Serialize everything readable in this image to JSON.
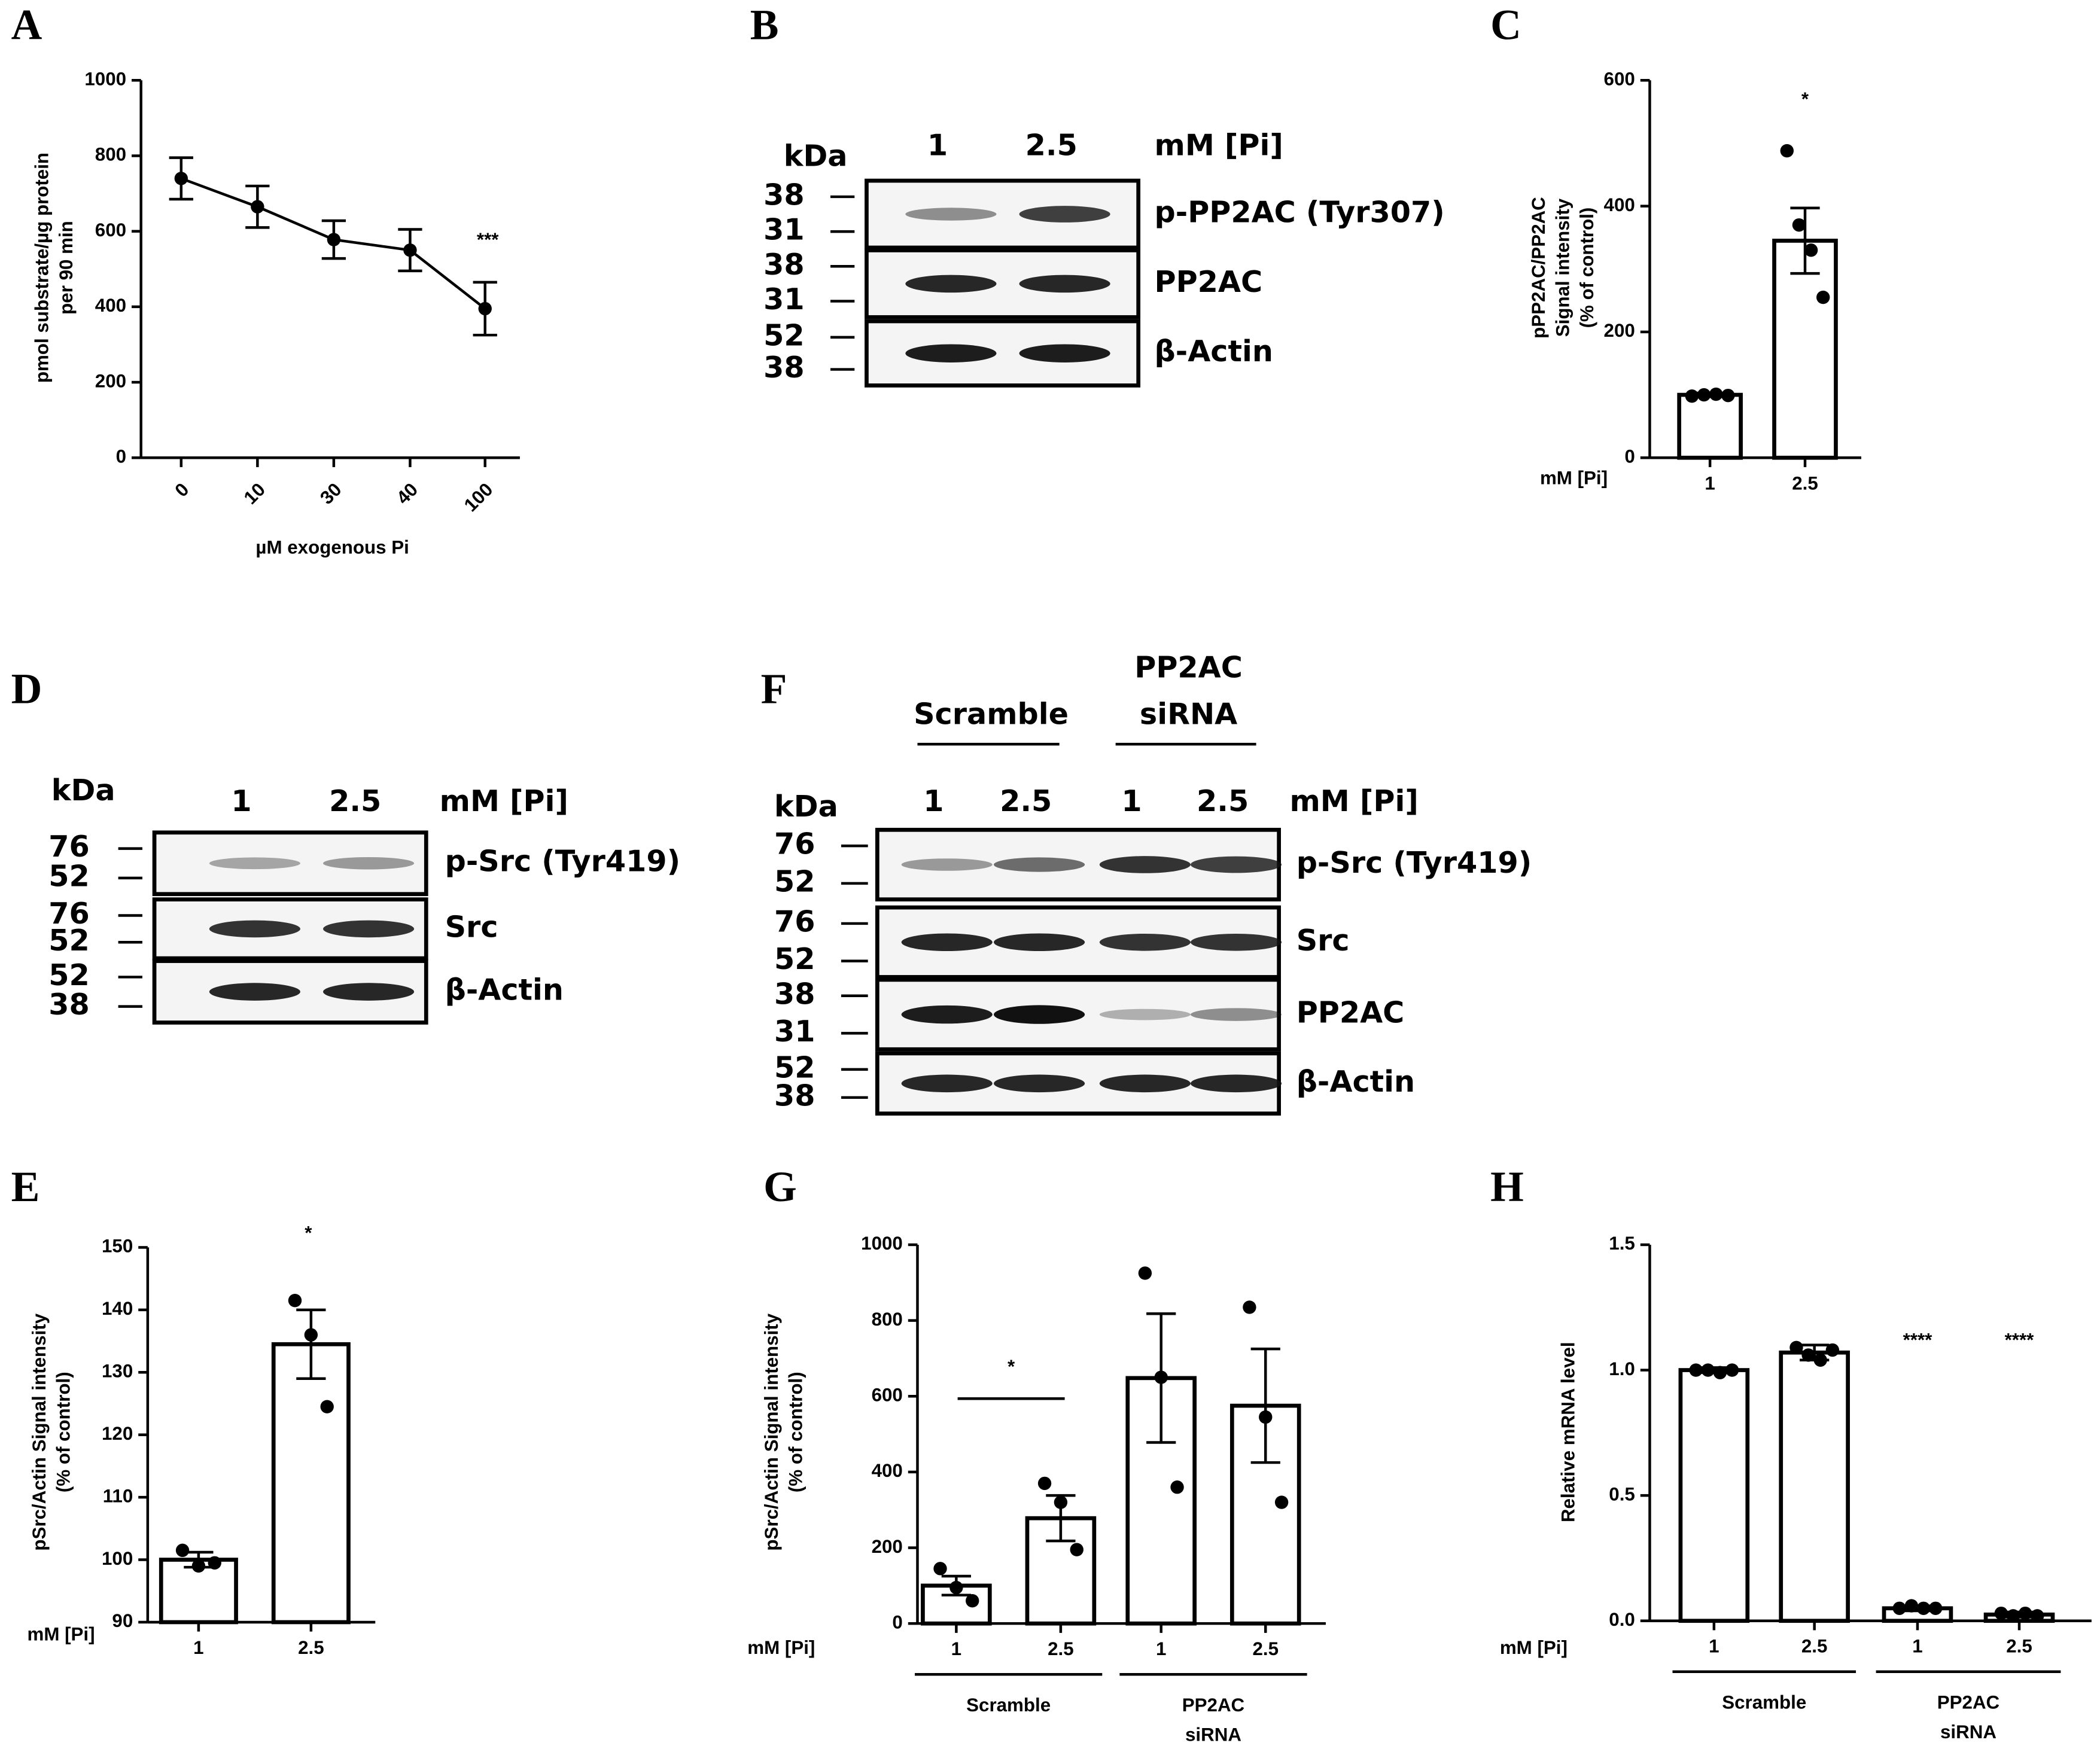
{
  "chart_data": [
    {
      "label": "A",
      "type": "line",
      "categories": [
        "0",
        "10",
        "30",
        "40",
        "100"
      ],
      "values": [
        740,
        665,
        578,
        550,
        395
      ],
      "errors": [
        55,
        55,
        50,
        55,
        70
      ],
      "color": "#000000",
      "ylim": [
        0,
        1000
      ],
      "yticks": [
        0,
        200,
        400,
        600,
        800,
        1000
      ],
      "ylabel": [
        "pmol substrate/µg protein",
        "per 90 min"
      ],
      "xlabel": "µM exogenous Pi",
      "annotations": [
        "***"
      ]
    },
    {
      "label": "C",
      "type": "bar",
      "categories": [
        "1",
        "2.5"
      ],
      "values": [
        100,
        345
      ],
      "errors": [
        3,
        52
      ],
      "points": [
        [
          98,
          100,
          101,
          99
        ],
        [
          488,
          370,
          330,
          255
        ]
      ],
      "color": "#ffffff",
      "ylim": [
        0,
        600
      ],
      "yticks": [
        0,
        200,
        400,
        600
      ],
      "ylabel": [
        "pPP2AC/PP2AC",
        "Signal intensity",
        "(% of control)"
      ],
      "xunit": "mM [Pi]",
      "annotations": [
        "*"
      ]
    },
    {
      "label": "E",
      "type": "bar",
      "categories": [
        "1",
        "2.5"
      ],
      "values": [
        100,
        134.5
      ],
      "errors": [
        1.2,
        5.5
      ],
      "points": [
        [
          101.5,
          99,
          99.5
        ],
        [
          141.5,
          136,
          124.5
        ]
      ],
      "color": "#ffffff",
      "ylim": [
        90,
        150
      ],
      "yticks": [
        90,
        100,
        110,
        120,
        130,
        140,
        150
      ],
      "ylabel": [
        "pSrc/Actin Signal intensity",
        "(% of control)"
      ],
      "xunit": "mM [Pi]",
      "annotations": [
        "*"
      ]
    },
    {
      "label": "G",
      "type": "bar",
      "categories": [
        "1",
        "2.5",
        "1",
        "2.5"
      ],
      "values": [
        100,
        278,
        648,
        575
      ],
      "errors": [
        25,
        60,
        170,
        150
      ],
      "points": [
        [
          145,
          95,
          60
        ],
        [
          370,
          320,
          195
        ],
        [
          925,
          650,
          360
        ],
        [
          835,
          545,
          320
        ]
      ],
      "color": "#ffffff",
      "ylim": [
        0,
        1000
      ],
      "yticks": [
        0,
        200,
        400,
        600,
        800,
        1000
      ],
      "ylabel": [
        "pSrc/Actin Signal intensity",
        "(% of control)"
      ],
      "xunit": "mM [Pi]",
      "annotations": [
        "*"
      ],
      "groups": [
        [
          "Scramble"
        ],
        [
          "PP2AC",
          "siRNA"
        ]
      ]
    },
    {
      "label": "H",
      "type": "bar",
      "categories": [
        "1",
        "2.5",
        "1",
        "2.5"
      ],
      "values": [
        1.0,
        1.07,
        0.05,
        0.025
      ],
      "errors": [
        0.01,
        0.03,
        0.01,
        0.01
      ],
      "points": [
        [
          1.0,
          1.0,
          0.99,
          1.0
        ],
        [
          1.09,
          1.06,
          1.04,
          1.08
        ],
        [
          0.05,
          0.06,
          0.05,
          0.05
        ],
        [
          0.03,
          0.02,
          0.03,
          0.02
        ]
      ],
      "color": "#ffffff",
      "ylim": [
        0,
        1.5
      ],
      "yticks": [
        {
          "value": 0,
          "label": "0.0"
        },
        0.5,
        {
          "value": 1,
          "label": "1.0"
        },
        1.5
      ],
      "ylabel": [
        "Relative mRNA level"
      ],
      "xunit": "mM [Pi]",
      "annotations": [
        "****",
        "****"
      ],
      "groups": [
        [
          "Scramble"
        ],
        [
          "PP2AC",
          "siRNA"
        ]
      ]
    }
  ],
  "blots": [
    {
      "label": "B",
      "kda_label": "kDa",
      "unit": "mM [Pi]",
      "lanes": [
        "1",
        "2.5"
      ],
      "rows": [
        {
          "markers": [
            "38",
            "31"
          ],
          "name": "p-PP2AC (Tyr307)"
        },
        {
          "markers": [
            "38",
            "31"
          ],
          "name": "PP2AC"
        },
        {
          "markers": [
            "52",
            "38"
          ],
          "name": "β-Actin"
        }
      ]
    },
    {
      "label": "D",
      "kda_label": "kDa",
      "unit": "mM [Pi]",
      "lanes": [
        "1",
        "2.5"
      ],
      "rows": [
        {
          "markers": [
            "76",
            "52"
          ],
          "name": "p-Src (Tyr419)"
        },
        {
          "markers": [
            "76",
            "52"
          ],
          "name": "Src"
        },
        {
          "markers": [
            "52",
            "38"
          ],
          "name": "β-Actin"
        }
      ]
    },
    {
      "label": "F",
      "kda_label": "kDa",
      "unit": "mM [Pi]",
      "lanes": [
        "1",
        "2.5",
        "1",
        "2.5"
      ],
      "groups": [
        [
          "Scramble"
        ],
        [
          "PP2AC",
          "siRNA"
        ]
      ],
      "rows": [
        {
          "markers": [
            "76",
            "52"
          ],
          "name": "p-Src (Tyr419)"
        },
        {
          "markers": [
            "76",
            "52"
          ],
          "name": "Src"
        },
        {
          "markers": [
            "38",
            "31"
          ],
          "name": "PP2AC"
        },
        {
          "markers": [
            "52",
            "38"
          ],
          "name": "β-Actin"
        }
      ]
    }
  ]
}
